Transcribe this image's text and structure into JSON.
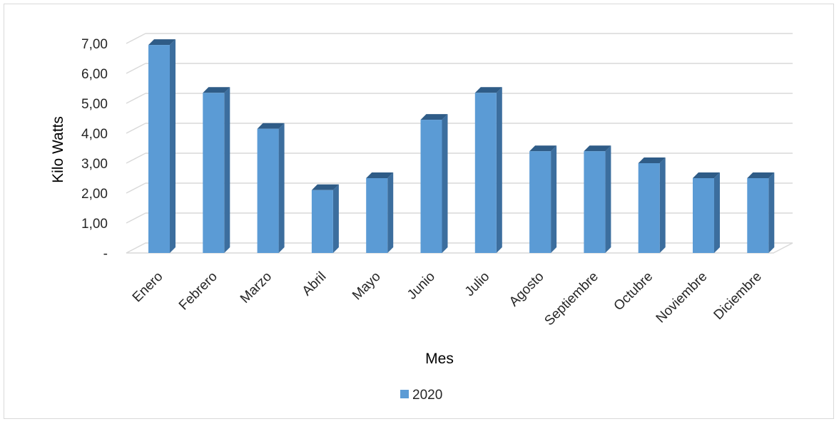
{
  "chart_data": {
    "type": "bar",
    "title": "",
    "xlabel": "Mes",
    "ylabel": "Kilo Watts",
    "ylim": [
      0,
      7
    ],
    "ytick_labels": [
      "-",
      "1,00",
      "2,00",
      "3,00",
      "4,00",
      "5,00",
      "6,00",
      "7,00"
    ],
    "categories": [
      "Enero",
      "Febrero",
      "Marzo",
      "Abril",
      "Mayo",
      "Junio",
      "Julio",
      "Agosto",
      "Septiembre",
      "Octubre",
      "Noviembre",
      "Diciembre"
    ],
    "series": [
      {
        "name": "2020",
        "values": [
          6.95,
          5.35,
          4.15,
          2.1,
          2.5,
          4.45,
          5.35,
          3.4,
          3.4,
          3.0,
          2.5,
          2.5
        ]
      }
    ],
    "colors": {
      "front": "#5b9bd5",
      "side": "#3c6e9e",
      "top": "#2f5c87"
    },
    "grid": true,
    "legend": "bottom",
    "bar_style": "3d-column"
  }
}
